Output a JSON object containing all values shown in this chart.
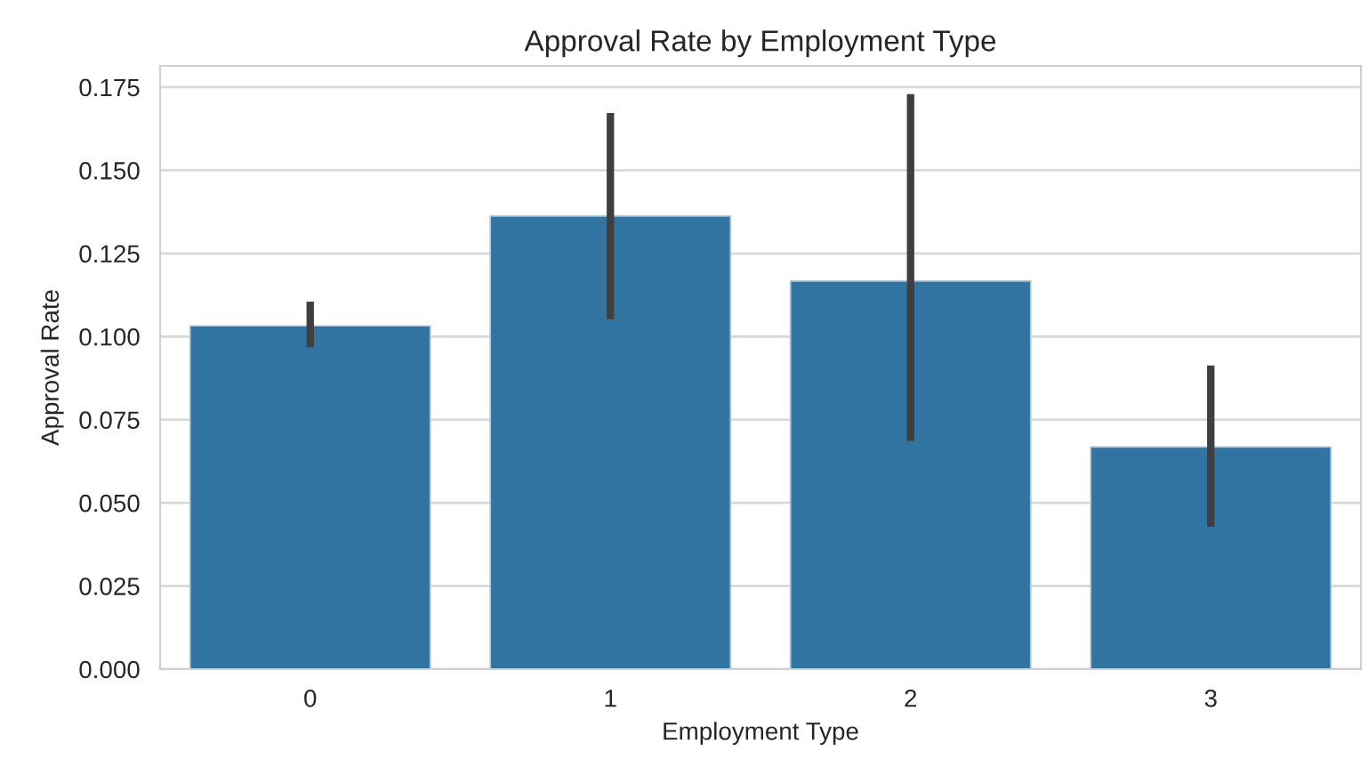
{
  "chart_data": {
    "type": "bar",
    "title": "Approval Rate by Employment Type",
    "xlabel": "Employment Type",
    "ylabel": "Approval Rate",
    "categories": [
      "0",
      "1",
      "2",
      "3"
    ],
    "values": [
      0.1032,
      0.1362,
      0.1167,
      0.0668
    ],
    "errors": [
      [
        0.0968,
        0.1105
      ],
      [
        0.1052,
        0.1672
      ],
      [
        0.0686,
        0.1729
      ],
      [
        0.0428,
        0.0913
      ]
    ],
    "color": "#3274a1",
    "ylim": [
      0,
      0.1814
    ],
    "yticks": [
      {
        "value": 0,
        "label": "0.000"
      },
      {
        "value": 0.025,
        "label": "0.025"
      },
      {
        "value": 0.05,
        "label": "0.050"
      },
      {
        "value": 0.075,
        "label": "0.075"
      },
      {
        "value": 0.1,
        "label": "0.100"
      },
      {
        "value": 0.125,
        "label": "0.125"
      },
      {
        "value": 0.15,
        "label": "0.150"
      },
      {
        "value": 0.175,
        "label": "0.175"
      }
    ],
    "grid": "y"
  }
}
